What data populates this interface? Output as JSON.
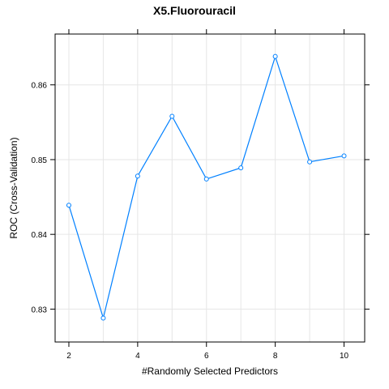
{
  "chart_data": {
    "type": "line",
    "title": "X5.Fluorouracil",
    "xlabel": "#Randomly Selected Predictors",
    "ylabel": "ROC (Cross-Validation)",
    "x": [
      2,
      3,
      4,
      5,
      6,
      7,
      8,
      9,
      10
    ],
    "series": [
      {
        "values": [
          0.8439,
          0.8288,
          0.8478,
          0.8558,
          0.8474,
          0.8489,
          0.8638,
          0.8497,
          0.8505
        ]
      }
    ],
    "xlim": [
      1.6,
      10.6
    ],
    "ylim": [
      0.8256,
      0.8668
    ],
    "xticks": [
      2,
      4,
      6,
      8,
      10
    ],
    "yticks": [
      0.83,
      0.84,
      0.85,
      0.86
    ],
    "xtick_labels": [
      "2",
      "4",
      "6",
      "8",
      "10"
    ],
    "ytick_labels": [
      "0.83",
      "0.84",
      "0.85",
      "0.86"
    ],
    "grid": true,
    "colors": {
      "line": "#0080ff",
      "grid": "#e6e6e6",
      "frame": "#000000"
    }
  }
}
